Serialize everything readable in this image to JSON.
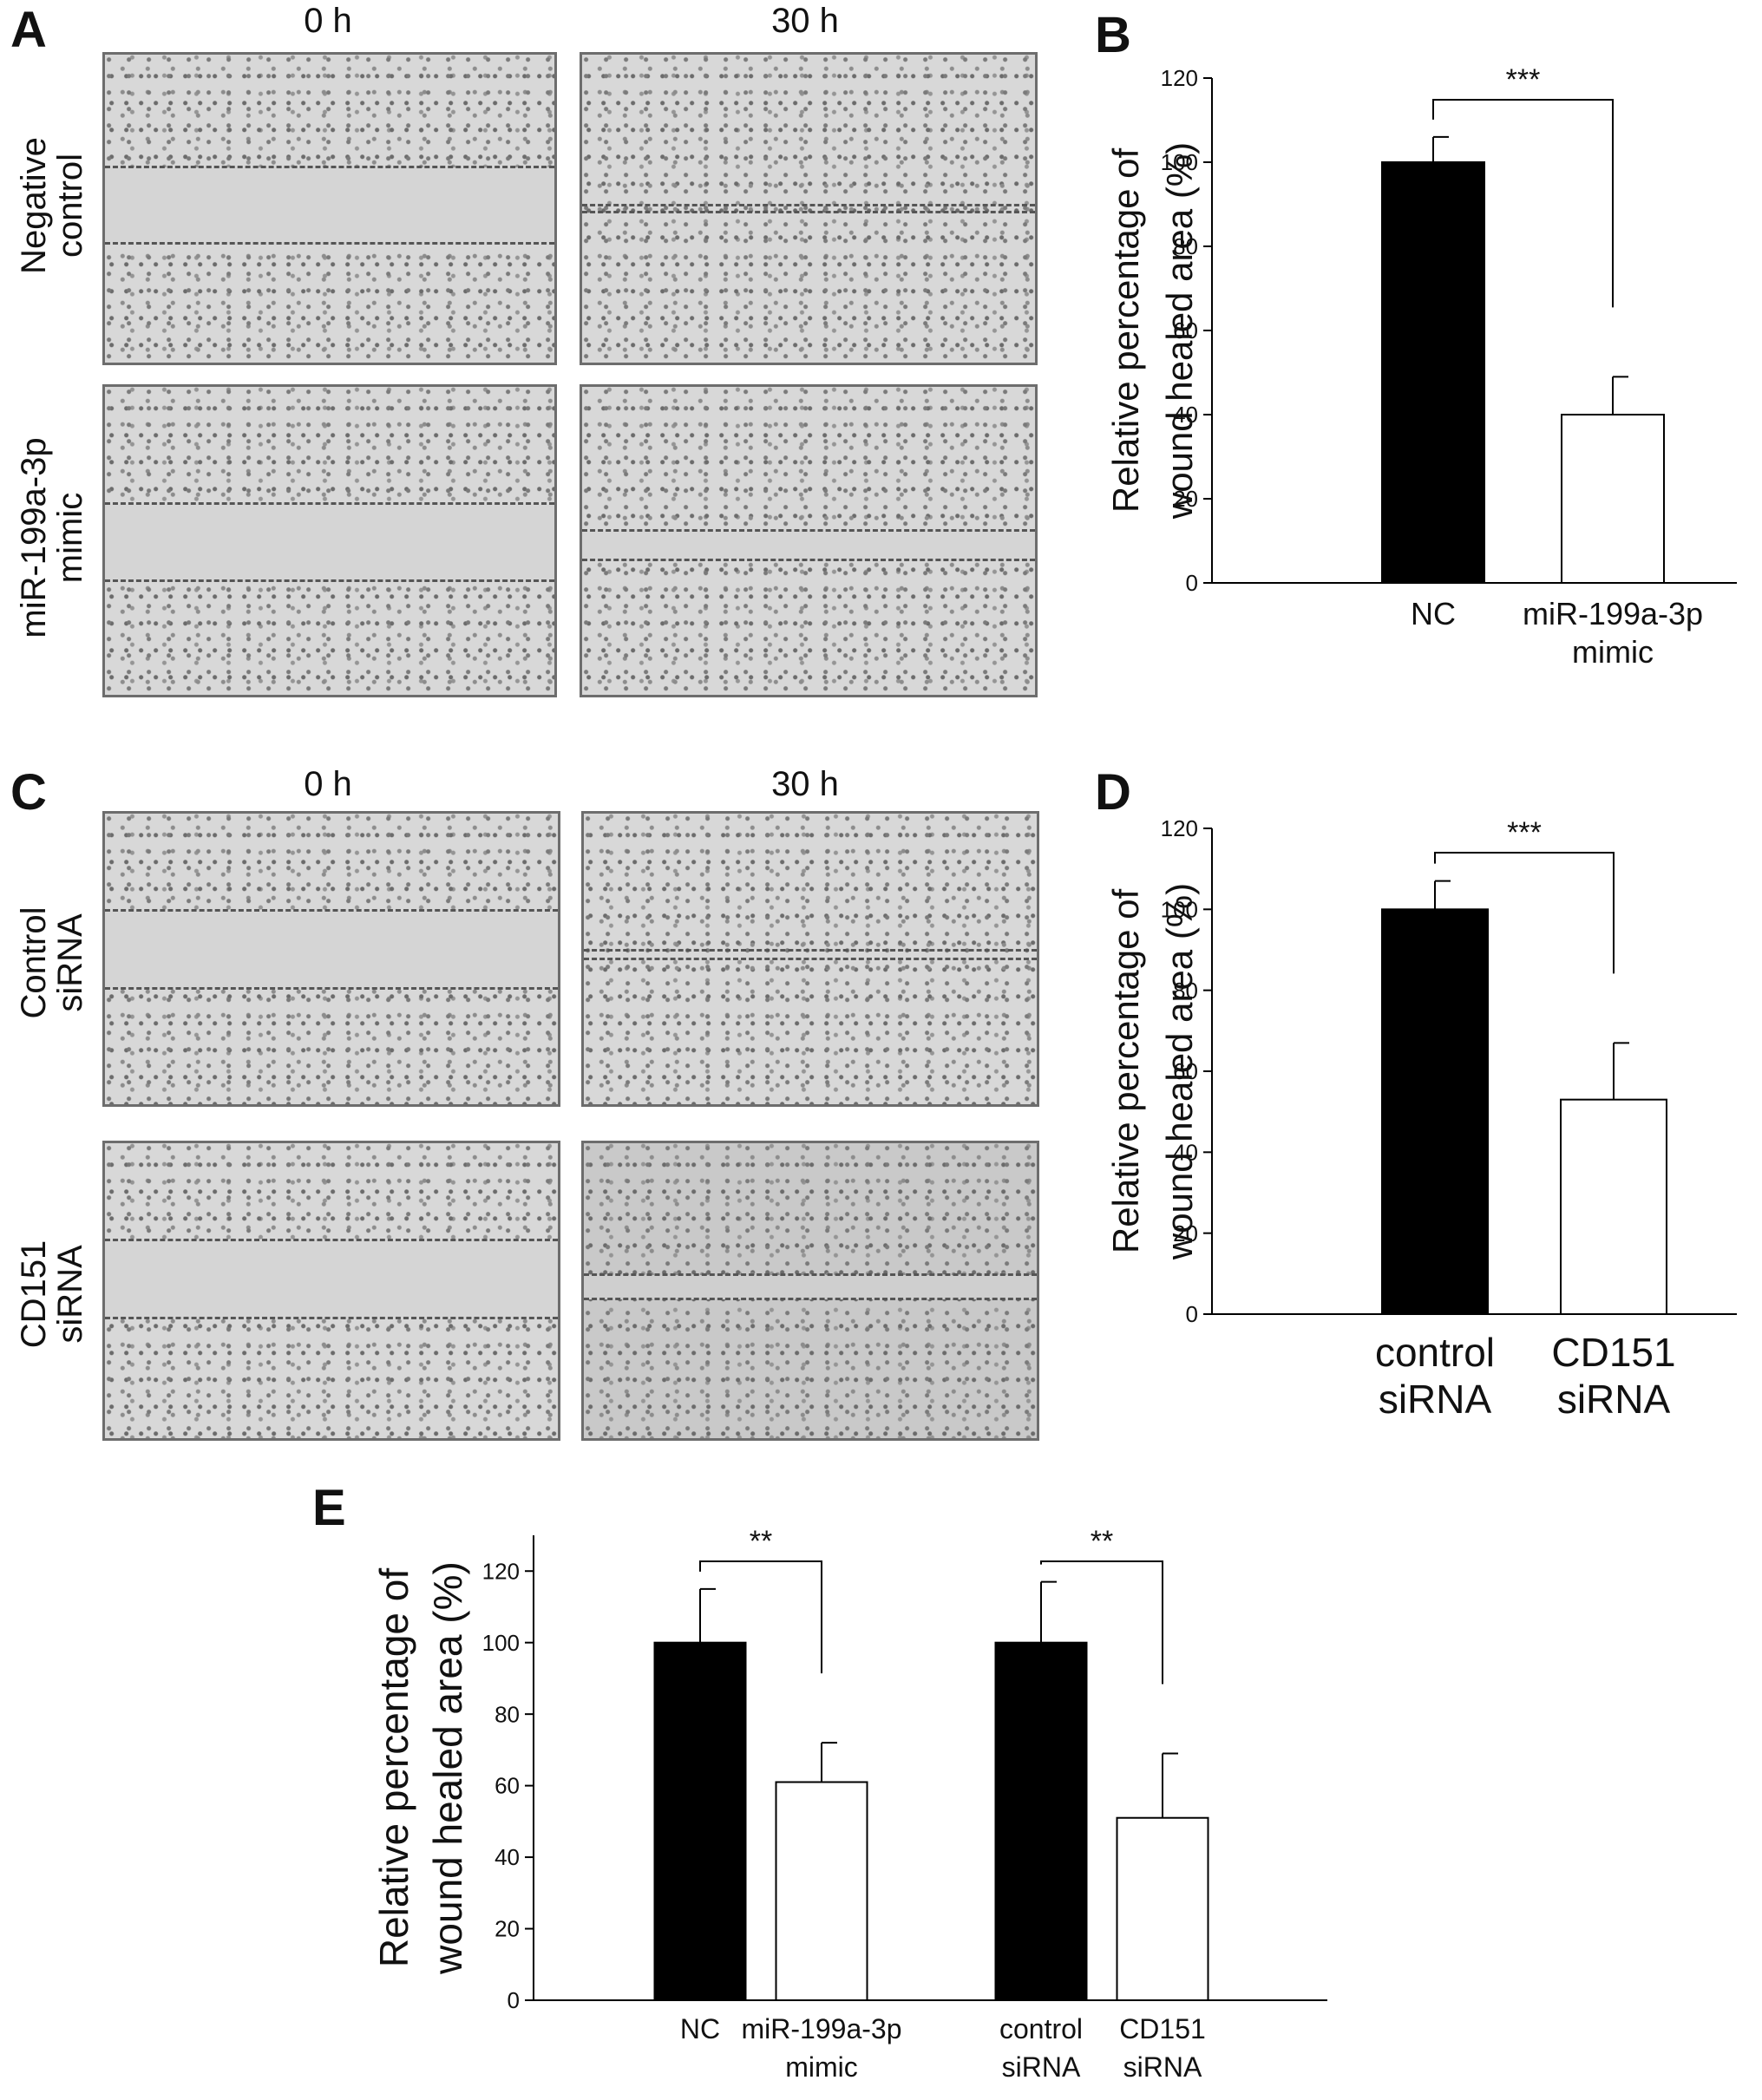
{
  "panels": {
    "A": {
      "label": "A",
      "col_headers": [
        "0 h",
        "30 h"
      ],
      "row_labels": [
        [
          "Negative",
          "control"
        ],
        [
          "miR-199a-3p",
          "mimic"
        ]
      ]
    },
    "B": {
      "label": "B"
    },
    "C": {
      "label": "C",
      "col_headers": [
        "0 h",
        "30 h"
      ],
      "row_labels": [
        [
          "Control",
          "siRNA"
        ],
        [
          "CD151",
          "siRNA"
        ]
      ]
    },
    "D": {
      "label": "D"
    },
    "E": {
      "label": "E"
    }
  },
  "colors": {
    "control_bar": "#000000",
    "treated_bar": "#ffffff",
    "axis": "#000000"
  },
  "chart_data": [
    {
      "panel": "B",
      "type": "bar",
      "ylabel_lines": [
        "Relative percentage of",
        "wound healed area (%)"
      ],
      "ylim": [
        0,
        120
      ],
      "yticks": [
        0,
        20,
        40,
        60,
        80,
        100,
        120
      ],
      "categories": [
        [
          "NC"
        ],
        [
          "miR-199a-3p",
          "mimic"
        ]
      ],
      "values": [
        100,
        40
      ],
      "errors": [
        6,
        9
      ],
      "fills": [
        "#000000",
        "#ffffff"
      ],
      "significance": [
        {
          "from": 0,
          "to": 1,
          "label": "***"
        }
      ]
    },
    {
      "panel": "D",
      "type": "bar",
      "ylabel_lines": [
        "Relative percentage of",
        "wound healed area (%)"
      ],
      "ylim": [
        0,
        120
      ],
      "yticks": [
        0,
        20,
        40,
        60,
        80,
        100,
        120
      ],
      "categories": [
        [
          "control",
          "siRNA"
        ],
        [
          "CD151",
          "siRNA"
        ]
      ],
      "values": [
        100,
        53
      ],
      "errors": [
        7,
        14
      ],
      "fills": [
        "#000000",
        "#ffffff"
      ],
      "significance": [
        {
          "from": 0,
          "to": 1,
          "label": "***"
        }
      ]
    },
    {
      "panel": "E",
      "type": "bar",
      "ylabel_lines": [
        "Relative percentage of",
        "wound healed area (%)"
      ],
      "ylim": [
        0,
        130
      ],
      "yticks": [
        0,
        20,
        40,
        60,
        80,
        100,
        120
      ],
      "categories": [
        [
          "NC"
        ],
        [
          "miR-199a-3p",
          "mimic"
        ],
        [
          "control",
          "siRNA"
        ],
        [
          "CD151",
          "siRNA"
        ]
      ],
      "values": [
        100,
        61,
        100,
        51
      ],
      "errors": [
        15,
        11,
        17,
        18
      ],
      "fills": [
        "#000000",
        "#ffffff",
        "#000000",
        "#ffffff"
      ],
      "significance": [
        {
          "from": 0,
          "to": 1,
          "label": "**"
        },
        {
          "from": 2,
          "to": 3,
          "label": "**"
        }
      ]
    }
  ]
}
